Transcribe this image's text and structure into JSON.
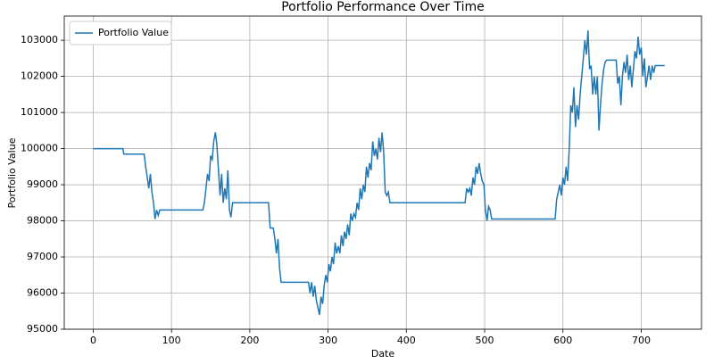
{
  "chart_data": {
    "type": "line",
    "title": "Portfolio Performance Over Time",
    "x_label": "Date",
    "y_label": "Portfolio Value",
    "x": [
      0,
      38,
      39,
      65,
      67,
      69,
      71,
      73,
      75,
      77,
      79,
      81,
      83,
      85,
      140,
      142,
      144,
      146,
      148,
      150,
      152,
      154,
      156,
      158,
      160,
      162,
      164,
      166,
      168,
      170,
      172,
      174,
      176,
      178,
      224,
      226,
      230,
      232,
      234,
      236,
      238,
      240,
      275,
      277,
      279,
      281,
      283,
      285,
      287,
      289,
      291,
      293,
      295,
      297,
      299,
      301,
      303,
      305,
      307,
      309,
      311,
      313,
      315,
      317,
      319,
      321,
      323,
      325,
      327,
      329,
      331,
      333,
      335,
      337,
      339,
      341,
      343,
      345,
      347,
      349,
      351,
      353,
      355,
      357,
      359,
      361,
      363,
      365,
      367,
      369,
      371,
      373,
      375,
      377,
      379,
      475,
      477,
      479,
      481,
      483,
      485,
      487,
      489,
      491,
      493,
      495,
      497,
      499,
      501,
      503,
      505,
      507,
      509,
      590,
      592,
      594,
      596,
      598,
      600,
      602,
      604,
      606,
      608,
      610,
      612,
      614,
      616,
      618,
      620,
      622,
      624,
      626,
      628,
      630,
      632,
      634,
      636,
      638,
      640,
      642,
      644,
      646,
      648,
      650,
      652,
      654,
      656,
      668,
      670,
      672,
      674,
      676,
      678,
      680,
      682,
      684,
      686,
      688,
      690,
      692,
      694,
      696,
      698,
      700,
      702,
      704,
      706,
      708,
      710,
      712,
      714,
      716,
      718,
      730
    ],
    "series": [
      {
        "name": "Portfolio Value",
        "color": "#1f77b4",
        "values": [
          100000,
          100000,
          99850,
          99850,
          99500,
          99200,
          98900,
          99300,
          98800,
          98500,
          98050,
          98300,
          98150,
          98300,
          98300,
          98500,
          98900,
          99300,
          99100,
          99800,
          99700,
          100200,
          100450,
          100100,
          99400,
          98700,
          99300,
          98500,
          98900,
          98600,
          99400,
          98300,
          98100,
          98500,
          98500,
          97800,
          97800,
          97500,
          97100,
          97500,
          96700,
          96300,
          96300,
          96000,
          96300,
          95900,
          96200,
          95800,
          95600,
          95400,
          95900,
          95700,
          96200,
          96500,
          96300,
          96800,
          96600,
          97000,
          96800,
          97400,
          97100,
          97300,
          97100,
          97600,
          97300,
          97700,
          97500,
          97900,
          97600,
          98200,
          98000,
          98200,
          98100,
          98500,
          98300,
          98900,
          98600,
          99000,
          98800,
          99500,
          99200,
          99600,
          99400,
          100200,
          99800,
          100000,
          99700,
          100300,
          99900,
          100450,
          99900,
          98800,
          98700,
          98800,
          98500,
          98500,
          98900,
          98800,
          98900,
          98700,
          99200,
          99000,
          99500,
          99300,
          99600,
          99300,
          99100,
          99000,
          98300,
          98000,
          98400,
          98300,
          98050,
          98050,
          98600,
          98800,
          99000,
          98700,
          99200,
          99000,
          99500,
          99100,
          100000,
          101200,
          101000,
          101700,
          100600,
          101200,
          100800,
          101500,
          102000,
          102500,
          103000,
          102600,
          103270,
          102200,
          102300,
          101500,
          102000,
          101500,
          102000,
          100500,
          101200,
          101800,
          102200,
          102400,
          102450,
          102450,
          101800,
          102000,
          101200,
          102000,
          102400,
          102100,
          102600,
          101900,
          102300,
          101700,
          102200,
          102700,
          102500,
          103100,
          102600,
          102800,
          102000,
          102500,
          101700,
          102000,
          102300,
          101900,
          102300,
          102100,
          102300,
          102300
        ]
      }
    ],
    "xlim": [
      -37,
      777
    ],
    "ylim": [
      95000,
      103670
    ],
    "xticks": [
      0,
      100,
      200,
      300,
      400,
      500,
      600,
      700
    ],
    "yticks": [
      95000,
      96000,
      97000,
      98000,
      99000,
      100000,
      101000,
      102000,
      103000
    ],
    "grid": true,
    "legend": "upper-left"
  }
}
